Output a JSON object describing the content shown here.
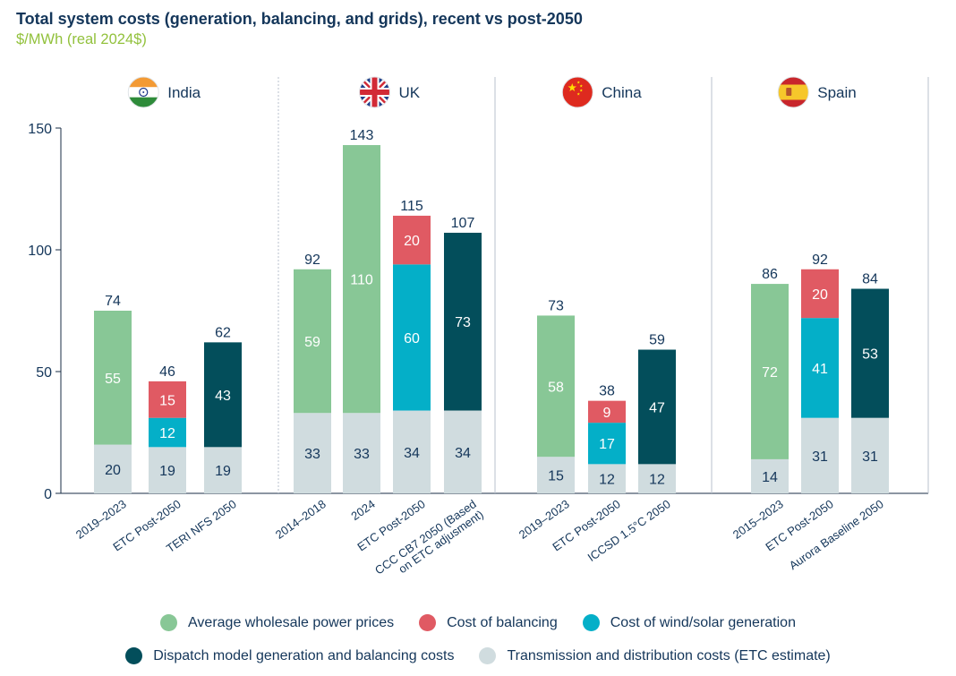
{
  "title": "Total system costs (generation, balancing, and grids), recent vs post-2050",
  "subtitle": "$/MWh (real 2024$)",
  "colors": {
    "wholesale": "#88c796",
    "balancing": "#e05a63",
    "generation": "#04afc8",
    "dispatch": "#034e5b",
    "transmission": "#d0dcdf"
  },
  "legend": [
    {
      "key": "wholesale",
      "label": "Average wholesale power prices",
      "row": 0
    },
    {
      "key": "balancing",
      "label": "Cost of balancing",
      "row": 0
    },
    {
      "key": "generation",
      "label": "Cost of wind/solar generation",
      "row": 0
    },
    {
      "key": "dispatch",
      "label": "Dispatch model generation and balancing costs",
      "row": 1
    },
    {
      "key": "transmission",
      "label": "Transmission and distribution costs (ETC estimate)",
      "row": 1
    }
  ],
  "chart_data": {
    "type": "bar",
    "stacked": true,
    "ylim": [
      0,
      150
    ],
    "yticks": [
      0,
      50,
      100,
      150
    ],
    "grid": false,
    "legend_position": "bottom",
    "groups": [
      {
        "name": "India",
        "flag": "india-flag-icon",
        "bars": [
          {
            "category": "2019–2023",
            "total": 74,
            "segments": [
              {
                "series": "transmission",
                "value": 20
              },
              {
                "series": "wholesale",
                "value": 55
              }
            ]
          },
          {
            "category": "ETC Post-2050",
            "total": 46,
            "segments": [
              {
                "series": "transmission",
                "value": 19
              },
              {
                "series": "generation",
                "value": 12
              },
              {
                "series": "balancing",
                "value": 15
              }
            ]
          },
          {
            "category": "TERI NFS 2050",
            "total": 62,
            "segments": [
              {
                "series": "transmission",
                "value": 19
              },
              {
                "series": "dispatch",
                "value": 43
              }
            ]
          }
        ]
      },
      {
        "name": "UK",
        "flag": "uk-flag-icon",
        "bars": [
          {
            "category": "2014–2018",
            "total": 92,
            "segments": [
              {
                "series": "transmission",
                "value": 33
              },
              {
                "series": "wholesale",
                "value": 59
              }
            ]
          },
          {
            "category": "2024",
            "total": 143,
            "segments": [
              {
                "series": "transmission",
                "value": 33
              },
              {
                "series": "wholesale",
                "value": 110
              }
            ]
          },
          {
            "category": "ETC Post-2050",
            "total": 115,
            "segments": [
              {
                "series": "transmission",
                "value": 34
              },
              {
                "series": "generation",
                "value": 60
              },
              {
                "series": "balancing",
                "value": 20
              }
            ]
          },
          {
            "category": [
              "CCC CB7 2050 (Based",
              "on ETC adjusment)"
            ],
            "total": 107,
            "segments": [
              {
                "series": "transmission",
                "value": 34
              },
              {
                "series": "dispatch",
                "value": 73
              }
            ]
          }
        ]
      },
      {
        "name": "China",
        "flag": "china-flag-icon",
        "bars": [
          {
            "category": "2019–2023",
            "total": 73,
            "segments": [
              {
                "series": "transmission",
                "value": 15
              },
              {
                "series": "wholesale",
                "value": 58
              }
            ]
          },
          {
            "category": "ETC Post-2050",
            "total": 38,
            "segments": [
              {
                "series": "transmission",
                "value": 12
              },
              {
                "series": "generation",
                "value": 17
              },
              {
                "series": "balancing",
                "value": 9
              }
            ]
          },
          {
            "category": "ICCSD 1.5°C 2050",
            "total": 59,
            "segments": [
              {
                "series": "transmission",
                "value": 12
              },
              {
                "series": "dispatch",
                "value": 47
              }
            ]
          }
        ]
      },
      {
        "name": "Spain",
        "flag": "spain-flag-icon",
        "bars": [
          {
            "category": "2015–2023",
            "total": 86,
            "segments": [
              {
                "series": "transmission",
                "value": 14
              },
              {
                "series": "wholesale",
                "value": 72
              }
            ]
          },
          {
            "category": "ETC Post-2050",
            "total": 92,
            "segments": [
              {
                "series": "transmission",
                "value": 31
              },
              {
                "series": "generation",
                "value": 41
              },
              {
                "series": "balancing",
                "value": 20
              }
            ]
          },
          {
            "category": "Aurora Baseline 2050",
            "total": 84,
            "segments": [
              {
                "series": "transmission",
                "value": 31
              },
              {
                "series": "dispatch",
                "value": 53
              }
            ]
          }
        ]
      }
    ]
  }
}
